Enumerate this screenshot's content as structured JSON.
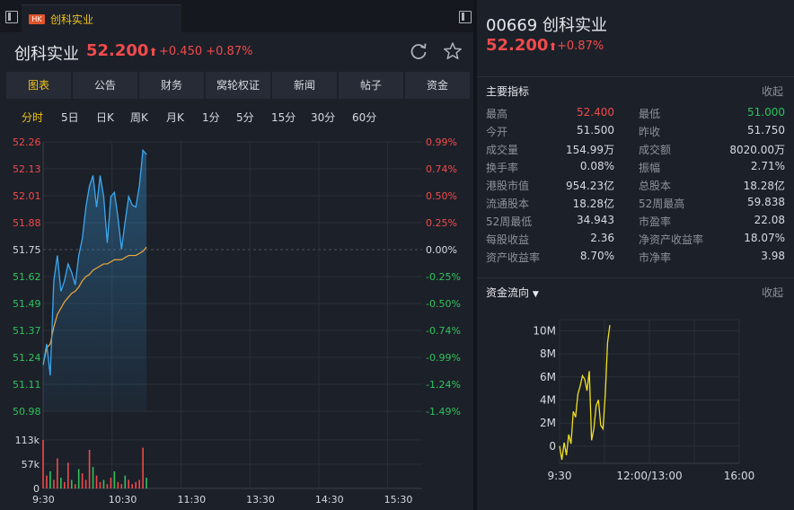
{
  "tab": {
    "badge": "HK",
    "label": "创科实业"
  },
  "quote": {
    "name": "创科实业",
    "price": "52.200",
    "arrow": "⬆",
    "change": "+0.450",
    "change_pct": "+0.87%"
  },
  "nav": [
    "图表",
    "公告",
    "财务",
    "窝轮权证",
    "新闻",
    "帖子",
    "资金"
  ],
  "periods": [
    "分时",
    "5日",
    "日K",
    "周K",
    "月K",
    "1分",
    "5分",
    "15分",
    "30分",
    "60分"
  ],
  "chart_data": [
    {
      "type": "line",
      "series": [
        {
          "values": [
            51.2,
            51.3,
            51.15,
            51.6,
            51.72,
            51.55,
            51.6,
            51.68,
            51.64,
            51.58,
            51.72,
            51.8,
            51.95,
            52.05,
            52.1,
            51.95,
            52.1,
            52.0,
            51.78,
            52.0,
            52.02,
            51.9,
            51.75,
            51.88,
            52.0,
            51.96,
            51.95,
            52.05,
            52.22,
            52.2
          ]
        },
        {
          "values": [
            51.2,
            51.28,
            51.3,
            51.38,
            51.44,
            51.47,
            51.5,
            51.52,
            51.54,
            51.55,
            51.57,
            51.6,
            51.62,
            51.63,
            51.65,
            51.66,
            51.67,
            51.68,
            51.68,
            51.69,
            51.7,
            51.7,
            51.7,
            51.71,
            51.72,
            51.72,
            51.72,
            51.73,
            51.74,
            51.76
          ]
        }
      ],
      "x_ticks": [
        "9:30",
        "10:30",
        "11:30",
        "13:30",
        "14:30",
        "15:30"
      ],
      "y_ticks": [
        "52.26",
        "52.13",
        "52.01",
        "51.88",
        "51.75",
        "51.62",
        "51.49",
        "51.37",
        "51.24",
        "51.11",
        "50.98"
      ],
      "y2_ticks": [
        "0.99%",
        "0.74%",
        "0.50%",
        "0.25%",
        "0.00%",
        "-0.25%",
        "-0.50%",
        "-0.74%",
        "-0.99%",
        "-1.24%",
        "-1.49%"
      ],
      "ylim": [
        50.98,
        52.26
      ],
      "prev_close": 51.75
    },
    {
      "type": "bar",
      "values": [
        113,
        30,
        40,
        20,
        70,
        25,
        15,
        60,
        20,
        10,
        45,
        35,
        20,
        90,
        50,
        30,
        15,
        20,
        10,
        25,
        40,
        15,
        10,
        30,
        20,
        10,
        15,
        20,
        95,
        25
      ],
      "up": [
        false,
        false,
        true,
        false,
        false,
        true,
        false,
        false,
        true,
        false,
        true,
        false,
        false,
        false,
        true,
        false,
        false,
        true,
        false,
        false,
        true,
        false,
        false,
        true,
        false,
        false,
        false,
        false,
        false,
        true
      ],
      "y_ticks": [
        "113k",
        "57k",
        "0"
      ],
      "ylim": [
        0,
        113
      ]
    },
    {
      "type": "line",
      "title": "资金流向",
      "series": [
        {
          "values": [
            0,
            -1.2,
            0.3,
            -0.8,
            1.0,
            0.2,
            3.0,
            2.5,
            4.5,
            5.2,
            6.1,
            5.8,
            4.8,
            6.5,
            0.5,
            1.5,
            3.5,
            4.0,
            1.8,
            1.5,
            4.5,
            9.0,
            10.5
          ]
        }
      ],
      "x_ticks": [
        "9:30",
        "12:00/13:00",
        "16:00"
      ],
      "y_ticks": [
        "10M",
        "8M",
        "6M",
        "4M",
        "2M",
        "0"
      ],
      "ylim": [
        -1.5,
        10.5
      ]
    }
  ],
  "right": {
    "code_name": "00669 创科实业",
    "price": "52.200",
    "arrow": "⬆",
    "change_pct": "+0.87%",
    "metrics_title": "主要指标",
    "collapse": "收起",
    "metrics": [
      {
        "l": "最高",
        "v": "52.400",
        "c": "red",
        "l2": "最低",
        "v2": "51.000",
        "c2": "green"
      },
      {
        "l": "今开",
        "v": "51.500",
        "c": "white",
        "l2": "昨收",
        "v2": "51.750",
        "c2": "white"
      },
      {
        "l": "成交量",
        "v": "154.99万",
        "c": "white",
        "l2": "成交额",
        "v2": "8020.00万",
        "c2": "white"
      },
      {
        "l": "换手率",
        "v": "0.08%",
        "c": "white",
        "l2": "振幅",
        "v2": "2.71%",
        "c2": "white"
      },
      {
        "l": "港股市值",
        "v": "954.23亿",
        "c": "white",
        "l2": "总股本",
        "v2": "18.28亿",
        "c2": "white"
      },
      {
        "l": "流通股本",
        "v": "18.28亿",
        "c": "white",
        "l2": "52周最高",
        "v2": "59.838",
        "c2": "white"
      },
      {
        "l": "52周最低",
        "v": "34.943",
        "c": "white",
        "l2": "市盈率",
        "v2": "22.08",
        "c2": "white"
      },
      {
        "l": "每股收益",
        "v": "2.36",
        "c": "white",
        "l2": "净资产收益率",
        "v2": "18.07%",
        "c2": "white"
      },
      {
        "l": "资产收益率",
        "v": "8.70%",
        "c": "white",
        "l2": "市净率",
        "v2": "3.98",
        "c2": "white"
      }
    ],
    "flow_title": "资金流向",
    "flow_collapse": "收起"
  },
  "colors": {
    "up": "#f04b4b",
    "down": "#2fc25b",
    "price_line": "#3aa8f0",
    "avg_line": "#f0a83a",
    "flow_line": "#f0e020",
    "accent": "#f0c419"
  }
}
